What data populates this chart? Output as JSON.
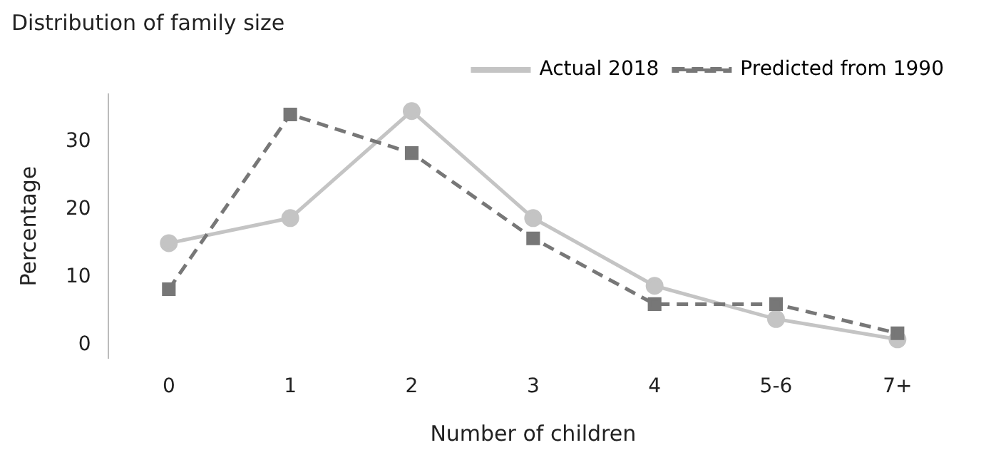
{
  "chart_data": {
    "type": "line",
    "title": "Distribution of family size",
    "xlabel": "Number of children",
    "ylabel": "Percentage",
    "categories": [
      "0",
      "1",
      "2",
      "3",
      "4",
      "5-6",
      "7+"
    ],
    "series": [
      {
        "name": "Actual 2018",
        "color": "#c4c4c4",
        "values": [
          15,
          18.7,
          34.5,
          18.7,
          8.7,
          3.8,
          0.8
        ],
        "marker": "circle",
        "line_style": "solid"
      },
      {
        "name": "Predicted from 1990",
        "color": "#777777",
        "values": [
          8.2,
          34,
          28.3,
          15.7,
          6,
          6,
          1.7
        ],
        "marker": "square",
        "line_style": "dashed"
      }
    ],
    "ylim": [
      -2,
      37
    ],
    "yticks": [
      0,
      10,
      20,
      30
    ],
    "grid": false,
    "legend": "top right"
  }
}
